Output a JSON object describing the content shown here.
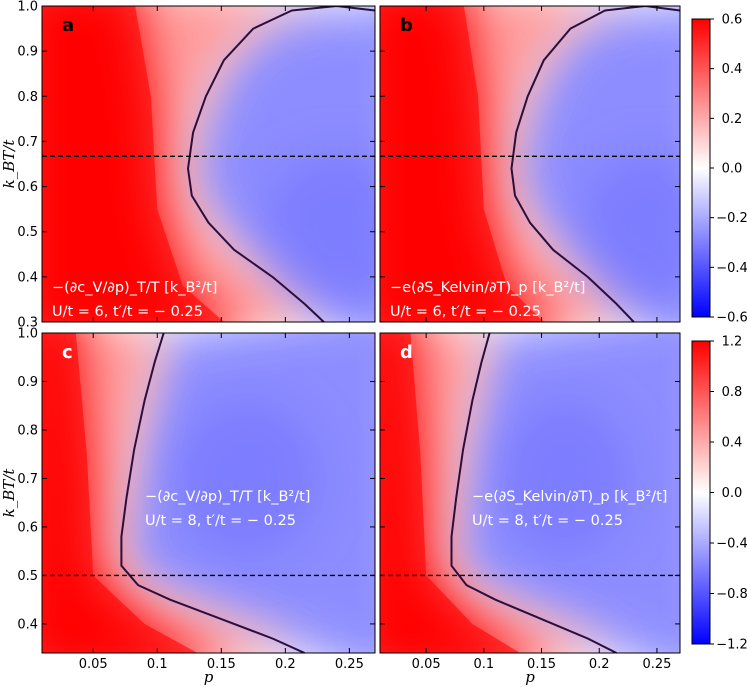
{
  "chart_data": [
    {
      "type": "heatmap",
      "panel": "a",
      "annotation_line1": "−(∂c_V/∂p)_T/T [k_B²/t]",
      "annotation_line2": "U/t = 6, t′/t = − 0.25",
      "xlabel": "",
      "ylabel": "k_BT/t",
      "xlim": [
        0.01,
        0.27
      ],
      "ylim": [
        0.3,
        1.0
      ],
      "yticks": [
        "0.3",
        "0.4",
        "0.5",
        "0.6",
        "0.7",
        "0.8",
        "0.9",
        "1.0"
      ],
      "xticks": [],
      "dashed_line_y": 0.667,
      "zero_contour": [
        [
          0.23,
          0.3
        ],
        [
          0.215,
          0.34
        ],
        [
          0.19,
          0.4
        ],
        [
          0.16,
          0.46
        ],
        [
          0.14,
          0.52
        ],
        [
          0.127,
          0.58
        ],
        [
          0.124,
          0.64
        ],
        [
          0.128,
          0.72
        ],
        [
          0.138,
          0.8
        ],
        [
          0.152,
          0.88
        ],
        [
          0.175,
          0.95
        ],
        [
          0.205,
          0.99
        ],
        [
          0.24,
          1.0
        ],
        [
          0.27,
          0.99
        ]
      ]
    },
    {
      "type": "heatmap",
      "panel": "b",
      "annotation_line1": "−e(∂S_Kelvin/∂T)_p [k_B²/t]",
      "annotation_line2": "U/t = 6, t′/t = − 0.25",
      "xlabel": "",
      "ylabel": "",
      "xlim": [
        0.01,
        0.27
      ],
      "ylim": [
        0.3,
        1.0
      ],
      "yticks": [],
      "xticks": [],
      "dashed_line_y": 0.667,
      "zero_contour": [
        [
          0.23,
          0.3
        ],
        [
          0.215,
          0.34
        ],
        [
          0.19,
          0.4
        ],
        [
          0.16,
          0.46
        ],
        [
          0.14,
          0.52
        ],
        [
          0.127,
          0.58
        ],
        [
          0.124,
          0.64
        ],
        [
          0.128,
          0.72
        ],
        [
          0.138,
          0.8
        ],
        [
          0.152,
          0.88
        ],
        [
          0.175,
          0.95
        ],
        [
          0.205,
          0.99
        ],
        [
          0.24,
          1.0
        ],
        [
          0.27,
          0.99
        ]
      ]
    },
    {
      "type": "heatmap",
      "panel": "c",
      "annotation_line1": "−(∂c_V/∂p)_T/T [k_B²/t]",
      "annotation_line2": "U/t = 8, t′/t = − 0.25",
      "xlabel": "p",
      "ylabel": "k_BT/t",
      "xlim": [
        0.01,
        0.27
      ],
      "ylim": [
        0.34,
        1.0
      ],
      "yticks": [
        "0.4",
        "0.5",
        "0.6",
        "0.7",
        "0.8",
        "0.9",
        "1.0"
      ],
      "xticks": [
        "0.05",
        "0.1",
        "0.15",
        "0.2",
        "0.25"
      ],
      "dashed_line_y": 0.5,
      "zero_contour": [
        [
          0.215,
          0.34
        ],
        [
          0.19,
          0.37
        ],
        [
          0.15,
          0.41
        ],
        [
          0.11,
          0.45
        ],
        [
          0.085,
          0.48
        ],
        [
          0.072,
          0.52
        ],
        [
          0.072,
          0.58
        ],
        [
          0.076,
          0.66
        ],
        [
          0.082,
          0.76
        ],
        [
          0.09,
          0.86
        ],
        [
          0.098,
          0.94
        ],
        [
          0.105,
          1.0
        ]
      ]
    },
    {
      "type": "heatmap",
      "panel": "d",
      "annotation_line1": "−e(∂S_Kelvin/∂T)_p [k_B²/t]",
      "annotation_line2": "U/t = 8, t′/t = − 0.25",
      "xlabel": "p",
      "ylabel": "",
      "xlim": [
        0.01,
        0.27
      ],
      "ylim": [
        0.34,
        1.0
      ],
      "yticks": [],
      "xticks": [
        "0.05",
        "0.1",
        "0.15",
        "0.2",
        "0.25"
      ],
      "dashed_line_y": 0.5,
      "zero_contour": [
        [
          0.215,
          0.34
        ],
        [
          0.19,
          0.37
        ],
        [
          0.15,
          0.41
        ],
        [
          0.11,
          0.45
        ],
        [
          0.085,
          0.48
        ],
        [
          0.072,
          0.52
        ],
        [
          0.072,
          0.58
        ],
        [
          0.076,
          0.66
        ],
        [
          0.082,
          0.76
        ],
        [
          0.09,
          0.86
        ],
        [
          0.098,
          0.94
        ],
        [
          0.105,
          1.0
        ]
      ]
    }
  ],
  "colorbars": [
    {
      "ticks": [
        "0.6",
        "0.4",
        "0.2",
        "0.0",
        "−0.2",
        "−0.4",
        "−0.6"
      ],
      "range": [
        -0.6,
        0.6
      ],
      "colors": [
        "#ff0000",
        "#ffffff",
        "#0000ff"
      ]
    },
    {
      "ticks": [
        "1.2",
        "0.8",
        "0.4",
        "0.0",
        "−0.4",
        "−0.8",
        "−1.2"
      ],
      "range": [
        -1.2,
        1.2
      ],
      "colors": [
        "#ff0000",
        "#ffffff",
        "#0000ff"
      ]
    }
  ]
}
